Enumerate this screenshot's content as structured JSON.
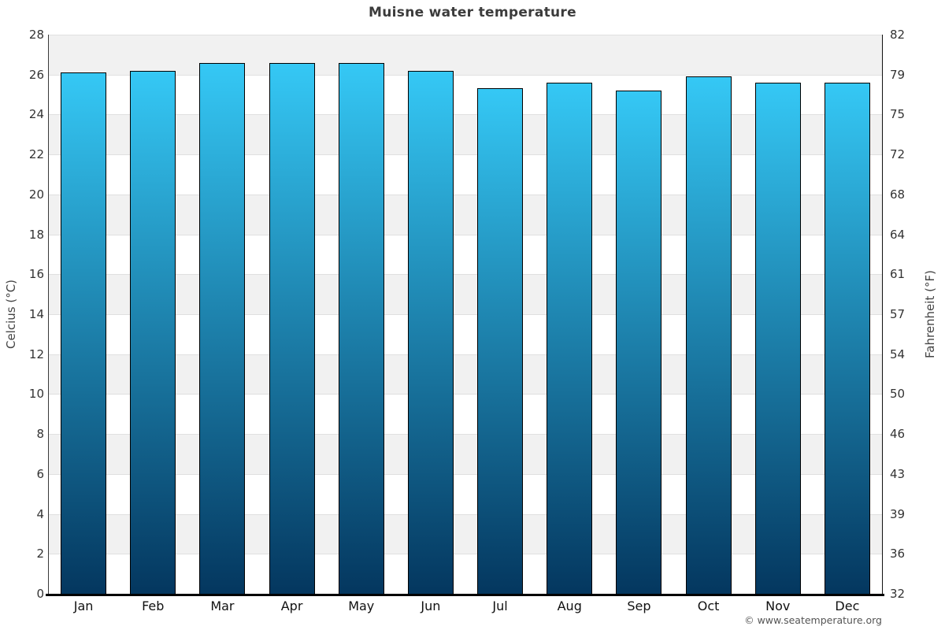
{
  "page": {
    "title": "Muisne water temperature",
    "footer_credit": "© www.seatemperature.org"
  },
  "chart_data": {
    "type": "bar",
    "title": "Muisne water temperature",
    "categories": [
      "Jan",
      "Feb",
      "Mar",
      "Apr",
      "May",
      "Jun",
      "Jul",
      "Aug",
      "Sep",
      "Oct",
      "Nov",
      "Dec"
    ],
    "values": [
      26.1,
      26.2,
      26.6,
      26.6,
      26.6,
      26.2,
      25.3,
      25.6,
      25.2,
      25.9,
      25.6,
      25.6
    ],
    "unit": "°C",
    "xlabel": "",
    "ylabel_left": "Celcius (°C)",
    "ylabel_right": "Fahrenheit (°F)",
    "ylim": [
      0,
      28
    ],
    "ytick_step_celsius": 2,
    "yticks_left": [
      "28",
      "26",
      "24",
      "22",
      "20",
      "18",
      "16",
      "14",
      "12",
      "10",
      "8",
      "6",
      "4",
      "2",
      "0"
    ],
    "yticks_right": [
      "82",
      "79",
      "75",
      "72",
      "68",
      "64",
      "61",
      "57",
      "54",
      "50",
      "46",
      "43",
      "39",
      "36",
      "32"
    ],
    "grid": "alternating horizontal bands, shaded band at top",
    "legend": null,
    "colors": {
      "bar_gradient_top": "#35c8f5",
      "bar_gradient_bottom": "#04375f",
      "bar_border": "#000000",
      "band_shaded": "#f1f1f1",
      "band_plain": "#ffffff",
      "gridline": "#e0e0e0",
      "axis_line_left": "#3a3a3a",
      "axis_line_right": "#111111",
      "axis_line_bottom": "#000000",
      "title_text": "#3c3c3c",
      "tick_text": "#333333",
      "footer_text": "#555555"
    }
  }
}
